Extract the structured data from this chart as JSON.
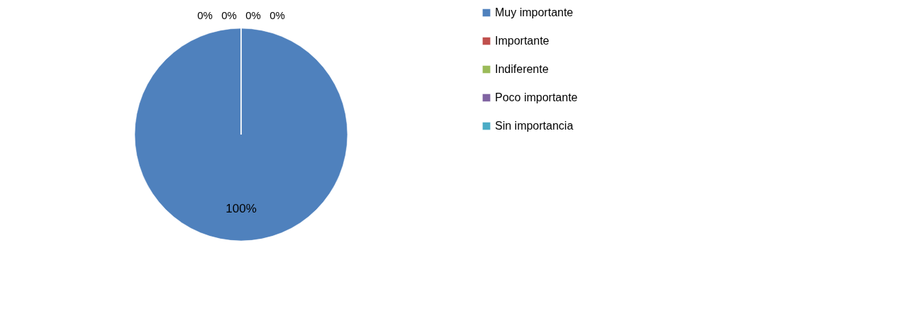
{
  "chart_data": {
    "type": "pie",
    "categories": [
      "Muy importante",
      "Importante",
      "Indiferente",
      "Poco importante",
      "Sin importancia"
    ],
    "values": [
      100,
      0,
      0,
      0,
      0
    ],
    "value_labels": [
      "100%",
      "0%",
      "0%",
      "0%",
      "0%"
    ],
    "colors": [
      "#4f81bd",
      "#c0504d",
      "#9bbb59",
      "#8064a2",
      "#4bacc6"
    ],
    "legend": "right"
  }
}
